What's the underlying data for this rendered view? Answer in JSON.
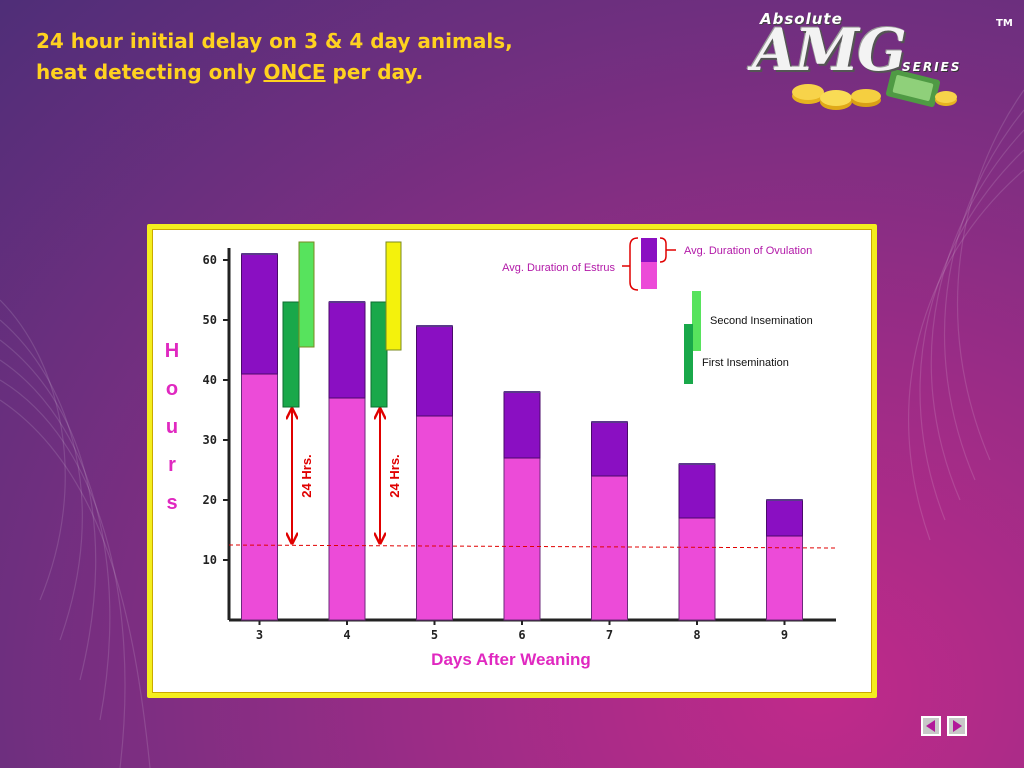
{
  "slide": {
    "title_line1": "24 hour initial delay on 3 & 4 day animals,",
    "title_line2_before": "heat detecting only ",
    "title_line2_emph": "ONCE",
    "title_line2_after": " per day."
  },
  "logo": {
    "top_text": "Absolute",
    "main_text": "AMG",
    "sub_text": "SERIES",
    "tm_text": "TM"
  },
  "legend": {
    "ovulation": "Avg. Duration of Ovulation",
    "estrus": "Avg. Duration of Estrus",
    "second_insemination": "Second Insemination",
    "first_insemination": "First Insemination"
  },
  "annotations": {
    "delay_label": "24 Hrs."
  },
  "colors": {
    "estrus": "#ec4bd8",
    "ovulation": "#8a0fc2",
    "first_insemination": "#19a84a",
    "second_insemination": "#57e35d",
    "second_insemination_alt": "#f4f20c",
    "arrow": "#e00000",
    "threshold_line": "#e00000",
    "axis_title": "#e028c0",
    "title": "#ffd21f"
  },
  "chart_data": {
    "type": "bar",
    "stacked": true,
    "xlabel": "Days After Weaning",
    "ylabel_letters": [
      "H",
      "o",
      "u",
      "r",
      "s"
    ],
    "categories": [
      "3",
      "4",
      "5",
      "6",
      "7",
      "8",
      "9"
    ],
    "yticks": [
      "10",
      "20",
      "30",
      "40",
      "50",
      "60"
    ],
    "ylim": [
      0,
      63
    ],
    "series": [
      {
        "name": "Avg. Duration of Estrus",
        "values": [
          41,
          37,
          34,
          27,
          24,
          17,
          14
        ]
      },
      {
        "name": "Avg. Duration of Ovulation",
        "values": [
          20,
          16,
          15,
          11,
          9,
          9,
          6
        ]
      }
    ],
    "insemination_windows": [
      {
        "category": "3",
        "first": [
          35.5,
          53
        ],
        "second": [
          45.5,
          63
        ]
      },
      {
        "category": "4",
        "first": [
          35.5,
          53
        ],
        "second": [
          45,
          63
        ]
      }
    ],
    "delay_arrows": [
      {
        "category": "3",
        "from": 12.5,
        "to": 35.5
      },
      {
        "category": "4",
        "from": 12.5,
        "to": 35.5
      }
    ],
    "threshold_line": {
      "from": 12.5,
      "to": 12
    },
    "grid": false
  }
}
